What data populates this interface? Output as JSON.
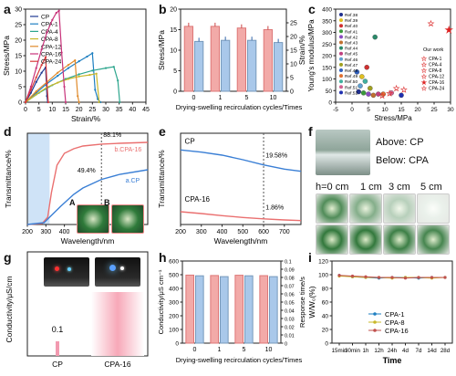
{
  "panels": {
    "a": {
      "label": "a"
    },
    "b": {
      "label": "b"
    },
    "c": {
      "label": "c"
    },
    "d": {
      "label": "d"
    },
    "e": {
      "label": "e"
    },
    "f": {
      "label": "f"
    },
    "g": {
      "label": "g"
    },
    "h": {
      "label": "h"
    },
    "i": {
      "label": "i"
    }
  },
  "colors": {
    "CP": "#1f3a93",
    "CPA-1": "#1e7fc1",
    "CPA-4": "#2ca58d",
    "CPA-8": "#c9b82a",
    "CPA-12": "#e08a2a",
    "CPA-16": "#c8327a",
    "CPA-24": "#d83a3a",
    "stress_bar": "#f2aaa8",
    "strain_bar": "#a9c8ea",
    "trans_CP": "#3a7fd5",
    "trans_CPA": "#ea7070"
  },
  "f_texts": {
    "above": "Above: CP",
    "below": "Below: CPA",
    "h0": "h=0 cm",
    "h1": "1 cm",
    "h3": "3 cm",
    "h5": "5 cm"
  },
  "d_texts": {
    "A": "A",
    "B": "B"
  },
  "chart_data": [
    {
      "panel": "a",
      "type": "line",
      "xlabel": "Strain/%",
      "ylabel": "Stress/MPa",
      "xlim": [
        0,
        45
      ],
      "ylim": [
        0,
        30
      ],
      "xticks": [
        0,
        5,
        10,
        15,
        20,
        25,
        30,
        35,
        40,
        45
      ],
      "yticks": [
        0,
        5,
        10,
        15,
        20,
        25,
        30
      ],
      "legend_position": "top-left",
      "series": [
        {
          "name": "CP",
          "points": [
            [
              0,
              0
            ],
            [
              2,
              3
            ],
            [
              4,
              6.5
            ],
            [
              6,
              9.5
            ],
            [
              7.5,
              11.2
            ],
            [
              8,
              2
            ],
            [
              8.3,
              0
            ]
          ]
        },
        {
          "name": "CPA-1",
          "points": [
            [
              0,
              0
            ],
            [
              4,
              3
            ],
            [
              8,
              6
            ],
            [
              12,
              8.5
            ],
            [
              16,
              11
            ],
            [
              20,
              13.2
            ],
            [
              23,
              14.7
            ],
            [
              25,
              15.8
            ],
            [
              26,
              4
            ],
            [
              27,
              1
            ],
            [
              28,
              0
            ]
          ]
        },
        {
          "name": "CPA-4",
          "points": [
            [
              0,
              0
            ],
            [
              5,
              3
            ],
            [
              10,
              5.5
            ],
            [
              15,
              7.5
            ],
            [
              20,
              9
            ],
            [
              25,
              10.2
            ],
            [
              30,
              11
            ],
            [
              33,
              11.4
            ],
            [
              34.5,
              7
            ],
            [
              35.2,
              0
            ]
          ]
        },
        {
          "name": "CPA-8",
          "points": [
            [
              0,
              0
            ],
            [
              4,
              2.5
            ],
            [
              8,
              4.8
            ],
            [
              12,
              6.3
            ],
            [
              16,
              7.5
            ],
            [
              20,
              8.3
            ],
            [
              24,
              8.8
            ],
            [
              26.5,
              9.2
            ],
            [
              27.5,
              0
            ]
          ]
        },
        {
          "name": "CPA-12",
          "points": [
            [
              0,
              0
            ],
            [
              4,
              3.5
            ],
            [
              8,
              6.5
            ],
            [
              12,
              9.5
            ],
            [
              16,
              12
            ],
            [
              18.5,
              13.5
            ],
            [
              19.5,
              2
            ],
            [
              20,
              0
            ]
          ]
        },
        {
          "name": "CPA-16",
          "points": [
            [
              0,
              0
            ],
            [
              2,
              5
            ],
            [
              4,
              11
            ],
            [
              6,
              17
            ],
            [
              8,
              22.5
            ],
            [
              10,
              26.5
            ],
            [
              11.5,
              28.8
            ],
            [
              12.5,
              29.5
            ],
            [
              13.5,
              16
            ],
            [
              14.5,
              5
            ],
            [
              15,
              0
            ]
          ]
        },
        {
          "name": "CPA-24",
          "points": [
            [
              0,
              0
            ],
            [
              2,
              4
            ],
            [
              4,
              8
            ],
            [
              6,
              12
            ],
            [
              7.5,
              14.5
            ],
            [
              8,
              6
            ],
            [
              8.5,
              0
            ]
          ]
        }
      ]
    },
    {
      "panel": "b",
      "type": "bar",
      "xlabel": "Drying-swelling recirculation cycles/Times",
      "ylabel": "Stress/MPa",
      "y2label": "Strain/%",
      "categories": [
        "0",
        "1",
        "5",
        "10"
      ],
      "ylim": [
        0,
        20
      ],
      "y2lim": [
        0,
        30
      ],
      "yticks": [
        0,
        5,
        10,
        15,
        20
      ],
      "y2ticks": [
        0,
        5,
        10,
        15,
        20,
        25
      ],
      "series": [
        {
          "name": "Stress",
          "values": [
            15.8,
            15.8,
            15.4,
            15.0
          ],
          "axis": "left"
        },
        {
          "name": "Strain",
          "values": [
            18.2,
            18.6,
            18.6,
            17.8
          ],
          "axis": "right"
        }
      ]
    },
    {
      "panel": "c",
      "type": "scatter",
      "xlabel": "Stress/MPa",
      "ylabel": "Young's modulus/MPa",
      "xlim": [
        -5,
        30
      ],
      "ylim": [
        0,
        400
      ],
      "xticks": [
        -5,
        0,
        5,
        10,
        15,
        20,
        25,
        30
      ],
      "yticks": [
        0,
        50,
        100,
        150,
        200,
        250,
        300,
        350,
        400
      ],
      "legend_title": "Our work",
      "refs": [
        "Ref.38",
        "Ref.39",
        "Ref.40",
        "Ref.41",
        "Ref.42",
        "Ref.43",
        "Ref.44",
        "Ref.45",
        "Ref.46",
        "Ref.47",
        "Ref.48",
        "Ref.49",
        "Ref.50",
        "Ref.51",
        "Ref.52"
      ],
      "ours": [
        "CPA-1",
        "CPA-4",
        "CPA-8",
        "CPA-12",
        "CPA-16",
        "CPA-24"
      ],
      "ref_points": [
        {
          "name": "Ref.38",
          "x": 2,
          "y": 45,
          "color": "#1f2f8f"
        },
        {
          "name": "Ref.39",
          "x": 3,
          "y": 110,
          "color": "#e0c020"
        },
        {
          "name": "Ref.40",
          "x": 4.5,
          "y": 150,
          "color": "#d03030"
        },
        {
          "name": "Ref.41",
          "x": 3.5,
          "y": 40,
          "color": "#3a9a3a"
        },
        {
          "name": "Ref.42",
          "x": 5,
          "y": 35,
          "color": "#8a4ac0"
        },
        {
          "name": "Ref.43",
          "x": 6.5,
          "y": 30,
          "color": "#c07030"
        },
        {
          "name": "Ref.44",
          "x": 7,
          "y": 280,
          "color": "#2a8a6a"
        },
        {
          "name": "Ref.45",
          "x": 8,
          "y": 35,
          "color": "#c04080"
        },
        {
          "name": "Ref.46",
          "x": 2.5,
          "y": 70,
          "color": "#60a0d0"
        },
        {
          "name": "Ref.47",
          "x": 5.5,
          "y": 60,
          "color": "#a0a020"
        },
        {
          "name": "Ref.48",
          "x": 1.5,
          "y": 130,
          "color": "#3060c0"
        },
        {
          "name": "Ref.49",
          "x": 9.5,
          "y": 35,
          "color": "#e07030"
        },
        {
          "name": "Ref.50",
          "x": 4,
          "y": 90,
          "color": "#40b0a0"
        },
        {
          "name": "Ref.51",
          "x": 12,
          "y": 40,
          "color": "#d06090"
        },
        {
          "name": "Ref.52",
          "x": 15,
          "y": 30,
          "color": "#2030b0"
        }
      ],
      "our_points": [
        {
          "name": "CPA-1",
          "x": 15.8,
          "y": 55
        },
        {
          "name": "CPA-4",
          "x": 11.4,
          "y": 40
        },
        {
          "name": "CPA-8",
          "x": 9.2,
          "y": 30
        },
        {
          "name": "CPA-12",
          "x": 13.5,
          "y": 60
        },
        {
          "name": "CPA-16",
          "x": 29.5,
          "y": 310
        },
        {
          "name": "CPA-24",
          "x": 24,
          "y": 340
        }
      ]
    },
    {
      "panel": "d",
      "type": "line",
      "xlabel": "Wavelength/nm",
      "ylabel": "Transmittance/%",
      "xlim": [
        200,
        850
      ],
      "ylim": [
        0,
        100
      ],
      "xticks": [
        200,
        300,
        400,
        500,
        600,
        700,
        800
      ],
      "annotations": [
        "88.1%",
        "49.4%"
      ],
      "series": [
        {
          "name": "b.CPA-16",
          "points": [
            [
              200,
              0
            ],
            [
              280,
              1
            ],
            [
              310,
              8
            ],
            [
              330,
              35
            ],
            [
              360,
              65
            ],
            [
              400,
              78
            ],
            [
              450,
              83
            ],
            [
              500,
              86
            ],
            [
              600,
              88.1
            ],
            [
              700,
              89
            ],
            [
              850,
              90
            ]
          ]
        },
        {
          "name": "a.CP",
          "points": [
            [
              200,
              0
            ],
            [
              290,
              2
            ],
            [
              330,
              10
            ],
            [
              380,
              20
            ],
            [
              450,
              33
            ],
            [
              500,
              40
            ],
            [
              600,
              49.4
            ],
            [
              700,
              55
            ],
            [
              850,
              60
            ]
          ]
        }
      ]
    },
    {
      "panel": "e",
      "type": "line",
      "xlabel": "Wavelength/nm",
      "ylabel": "Transmittance/%",
      "xlim": [
        200,
        780
      ],
      "ylim": [
        0,
        30
      ],
      "xticks": [
        200,
        300,
        400,
        500,
        600,
        700
      ],
      "annotations": [
        "19.58%",
        "1.86%"
      ],
      "series": [
        {
          "name": "CP",
          "points": [
            [
              200,
              24.5
            ],
            [
              300,
              23.8
            ],
            [
              400,
              22.8
            ],
            [
              500,
              21.3
            ],
            [
              600,
              19.58
            ],
            [
              700,
              18.2
            ],
            [
              780,
              17.5
            ]
          ]
        },
        {
          "name": "CPA-16",
          "points": [
            [
              200,
              4.2
            ],
            [
              300,
              3.6
            ],
            [
              400,
              2.9
            ],
            [
              500,
              2.3
            ],
            [
              600,
              1.86
            ],
            [
              700,
              1.5
            ],
            [
              780,
              1.3
            ]
          ]
        }
      ]
    },
    {
      "panel": "g",
      "type": "bar",
      "xlabel": "",
      "ylabel": "Conductivity/μS/cm",
      "categories": [
        "CP",
        "CPA-16"
      ],
      "annotations": [
        "0.1"
      ],
      "values": [
        0.1,
        null
      ]
    },
    {
      "panel": "h",
      "type": "bar",
      "xlabel": "Drying-swelling recirculation cycles/Times",
      "ylabel": "Conductivity/μS cm⁻¹",
      "y2label": "Response time/s",
      "categories": [
        "0",
        "1",
        "5",
        "10"
      ],
      "ylim": [
        0,
        600
      ],
      "y2lim": [
        0,
        0.1
      ],
      "yticks": [
        0,
        100,
        200,
        300,
        400,
        500,
        600
      ],
      "y2ticks": [
        0,
        0.01,
        0.02,
        0.03,
        0.04,
        0.05,
        0.06,
        0.07,
        0.08,
        0.09,
        0.1
      ],
      "series": [
        {
          "name": "Conductivity",
          "values": [
            497,
            494,
            496,
            493
          ],
          "axis": "left"
        },
        {
          "name": "Response time",
          "values": [
            0.082,
            0.081,
            0.082,
            0.081
          ],
          "axis": "right"
        }
      ]
    },
    {
      "panel": "i",
      "type": "line",
      "xlabel": "Time",
      "ylabel": "W/W₀(%)",
      "categories": [
        "15min",
        "30min",
        "1h",
        "12h",
        "24h",
        "4d",
        "7d",
        "14d",
        "28d"
      ],
      "ylim": [
        0,
        120
      ],
      "yticks": [
        0,
        20,
        40,
        60,
        80,
        100,
        120
      ],
      "legend_position": "bottom-center",
      "series": [
        {
          "name": "CPA-1",
          "values": [
            99,
            97,
            96,
            95,
            96,
            96,
            95,
            96,
            96
          ]
        },
        {
          "name": "CPA-8",
          "values": [
            98,
            97,
            96,
            96,
            95,
            96,
            96,
            95,
            96
          ]
        },
        {
          "name": "CPA-16",
          "values": [
            99,
            98,
            97,
            96,
            96,
            95,
            96,
            96,
            96
          ]
        }
      ]
    }
  ]
}
